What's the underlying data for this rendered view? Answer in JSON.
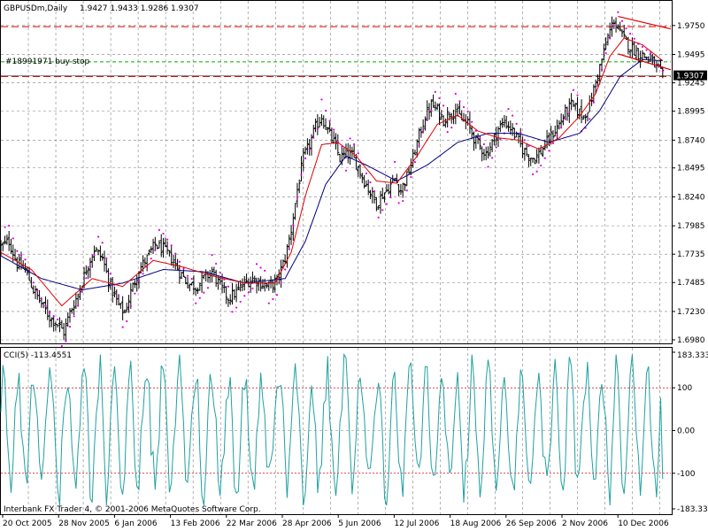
{
  "header": {
    "symbol": "GBPUSDm,Daily",
    "ohlc": "1.9427 1.9433 1.9286 1.9307"
  },
  "order_label": "#18991971 buy stop",
  "current_price_label": "1.9307",
  "indicator": {
    "name": "CCI(5)",
    "value": "-113.4551",
    "label": "CCI(5) -113.4551"
  },
  "copyright": "Interbank FX Trader 4, © 2001-2006 MetaQuotes Software Corp.",
  "colors": {
    "background": "#ffffff",
    "grid": "#808080",
    "bars": "#000000",
    "ma_fast": "#e00000",
    "ma_slow": "#000080",
    "sar": "#e000e0",
    "cci": "#20a0a0",
    "level_line": "#e00000",
    "order_line": "#00b000",
    "channel": "#e00000",
    "price_tag_bg": "#000000"
  },
  "chart_data": [
    {
      "type": "ohlc",
      "title": "GBPUSDm,Daily",
      "ylim": [
        1.698,
        1.985
      ],
      "y_ticks": [
        "1.9750",
        "1.9495",
        "1.9245",
        "1.8995",
        "1.8740",
        "1.8495",
        "1.8240",
        "1.7985",
        "1.7735",
        "1.7485",
        "1.7230",
        "1.6980"
      ],
      "x_ticks": [
        "20 Oct 2005",
        "28 Nov 2005",
        "6 Jan 2006",
        "13 Feb 2006",
        "22 Mar 2006",
        "28 Apr 2006",
        "5 Jun 2006",
        "12 Jul 2006",
        "18 Aug 2006",
        "26 Sep 2006",
        "2 Nov 2006",
        "10 Dec 2006"
      ],
      "horizontal_levels": [
        {
          "value": 1.974,
          "style": "dashed",
          "color": "level_line"
        },
        {
          "value": 1.93,
          "style": "dashed",
          "color": "level_line"
        },
        {
          "value": 1.943,
          "style": "dashed",
          "color": "order_line"
        },
        {
          "value": 1.9307,
          "style": "solid",
          "color": "grid"
        }
      ],
      "close_path": [
        [
          0,
          1.78
        ],
        [
          4,
          1.785
        ],
        [
          8,
          1.765
        ],
        [
          12,
          1.76
        ],
        [
          16,
          1.742
        ],
        [
          20,
          1.73
        ],
        [
          24,
          1.718
        ],
        [
          28,
          1.712
        ],
        [
          31,
          1.705
        ],
        [
          34,
          1.722
        ],
        [
          38,
          1.738
        ],
        [
          42,
          1.76
        ],
        [
          46,
          1.778
        ],
        [
          50,
          1.77
        ],
        [
          54,
          1.745
        ],
        [
          58,
          1.728
        ],
        [
          61,
          1.722
        ],
        [
          64,
          1.74
        ],
        [
          68,
          1.76
        ],
        [
          72,
          1.77
        ],
        [
          76,
          1.782
        ],
        [
          80,
          1.778
        ],
        [
          84,
          1.77
        ],
        [
          88,
          1.758
        ],
        [
          92,
          1.748
        ],
        [
          96,
          1.745
        ],
        [
          100,
          1.752
        ],
        [
          104,
          1.758
        ],
        [
          108,
          1.745
        ],
        [
          112,
          1.735
        ],
        [
          116,
          1.74
        ],
        [
          120,
          1.748
        ],
        [
          124,
          1.752
        ],
        [
          128,
          1.748
        ],
        [
          132,
          1.745
        ],
        [
          136,
          1.75
        ],
        [
          140,
          1.77
        ],
        [
          143,
          1.795
        ],
        [
          146,
          1.83
        ],
        [
          149,
          1.858
        ],
        [
          152,
          1.87
        ],
        [
          155,
          1.885
        ],
        [
          158,
          1.895
        ],
        [
          161,
          1.882
        ],
        [
          164,
          1.872
        ],
        [
          167,
          1.858
        ],
        [
          170,
          1.862
        ],
        [
          173,
          1.86
        ],
        [
          176,
          1.85
        ],
        [
          179,
          1.838
        ],
        [
          182,
          1.828
        ],
        [
          185,
          1.818
        ],
        [
          188,
          1.826
        ],
        [
          191,
          1.832
        ],
        [
          194,
          1.84
        ],
        [
          197,
          1.83
        ],
        [
          200,
          1.842
        ],
        [
          203,
          1.858
        ],
        [
          206,
          1.878
        ],
        [
          209,
          1.895
        ],
        [
          212,
          1.905
        ],
        [
          215,
          1.9
        ],
        [
          218,
          1.892
        ],
        [
          221,
          1.898
        ],
        [
          224,
          1.9
        ],
        [
          227,
          1.892
        ],
        [
          230,
          1.888
        ],
        [
          233,
          1.876
        ],
        [
          236,
          1.868
        ],
        [
          239,
          1.862
        ],
        [
          242,
          1.872
        ],
        [
          245,
          1.884
        ],
        [
          248,
          1.89
        ],
        [
          251,
          1.885
        ],
        [
          254,
          1.876
        ],
        [
          257,
          1.866
        ],
        [
          260,
          1.86
        ],
        [
          263,
          1.858
        ],
        [
          266,
          1.864
        ],
        [
          269,
          1.872
        ],
        [
          272,
          1.88
        ],
        [
          275,
          1.888
        ],
        [
          278,
          1.898
        ],
        [
          281,
          1.905
        ],
        [
          284,
          1.9
        ],
        [
          287,
          1.895
        ],
        [
          290,
          1.905
        ],
        [
          293,
          1.925
        ],
        [
          296,
          1.945
        ],
        [
          299,
          1.965
        ],
        [
          302,
          1.98
        ],
        [
          305,
          1.968
        ],
        [
          308,
          1.96
        ],
        [
          311,
          1.955
        ],
        [
          314,
          1.95
        ],
        [
          317,
          1.948
        ],
        [
          320,
          1.945
        ],
        [
          323,
          1.938
        ],
        [
          326,
          1.9307
        ]
      ],
      "ma_fast_path": [
        [
          0,
          1.775
        ],
        [
          15,
          1.76
        ],
        [
          30,
          1.728
        ],
        [
          45,
          1.752
        ],
        [
          60,
          1.745
        ],
        [
          75,
          1.768
        ],
        [
          90,
          1.762
        ],
        [
          105,
          1.754
        ],
        [
          120,
          1.748
        ],
        [
          135,
          1.748
        ],
        [
          143,
          1.775
        ],
        [
          150,
          1.825
        ],
        [
          158,
          1.87
        ],
        [
          166,
          1.872
        ],
        [
          175,
          1.86
        ],
        [
          185,
          1.838
        ],
        [
          195,
          1.836
        ],
        [
          205,
          1.86
        ],
        [
          215,
          1.888
        ],
        [
          225,
          1.896
        ],
        [
          235,
          1.882
        ],
        [
          245,
          1.876
        ],
        [
          255,
          1.874
        ],
        [
          265,
          1.866
        ],
        [
          275,
          1.876
        ],
        [
          285,
          1.895
        ],
        [
          293,
          1.915
        ],
        [
          300,
          1.948
        ],
        [
          307,
          1.964
        ],
        [
          316,
          1.958
        ],
        [
          326,
          1.944
        ]
      ],
      "ma_slow_path": [
        [
          0,
          1.772
        ],
        [
          20,
          1.752
        ],
        [
          40,
          1.742
        ],
        [
          60,
          1.748
        ],
        [
          80,
          1.76
        ],
        [
          100,
          1.758
        ],
        [
          120,
          1.748
        ],
        [
          140,
          1.752
        ],
        [
          150,
          1.785
        ],
        [
          160,
          1.835
        ],
        [
          170,
          1.86
        ],
        [
          180,
          1.852
        ],
        [
          195,
          1.838
        ],
        [
          210,
          1.852
        ],
        [
          225,
          1.872
        ],
        [
          240,
          1.88
        ],
        [
          255,
          1.88
        ],
        [
          270,
          1.872
        ],
        [
          285,
          1.88
        ],
        [
          295,
          1.9
        ],
        [
          305,
          1.93
        ],
        [
          316,
          1.945
        ],
        [
          326,
          1.944
        ]
      ],
      "channel_lines": [
        {
          "from": [
            304,
            1.983
          ],
          "to": [
            330,
            1.972
          ]
        },
        {
          "from": [
            304,
            1.95
          ],
          "to": [
            330,
            1.936
          ]
        }
      ]
    },
    {
      "type": "line",
      "title": "CCI(5) -113.4551",
      "series": [
        {
          "name": "CCI(5)",
          "seed": 5
        }
      ],
      "ylim": [
        -183.3333,
        183.3333
      ],
      "y_ticks": [
        "183.3333",
        "100",
        "0.00",
        "-100",
        "-183.333"
      ],
      "levels": [
        100,
        -100
      ]
    }
  ]
}
